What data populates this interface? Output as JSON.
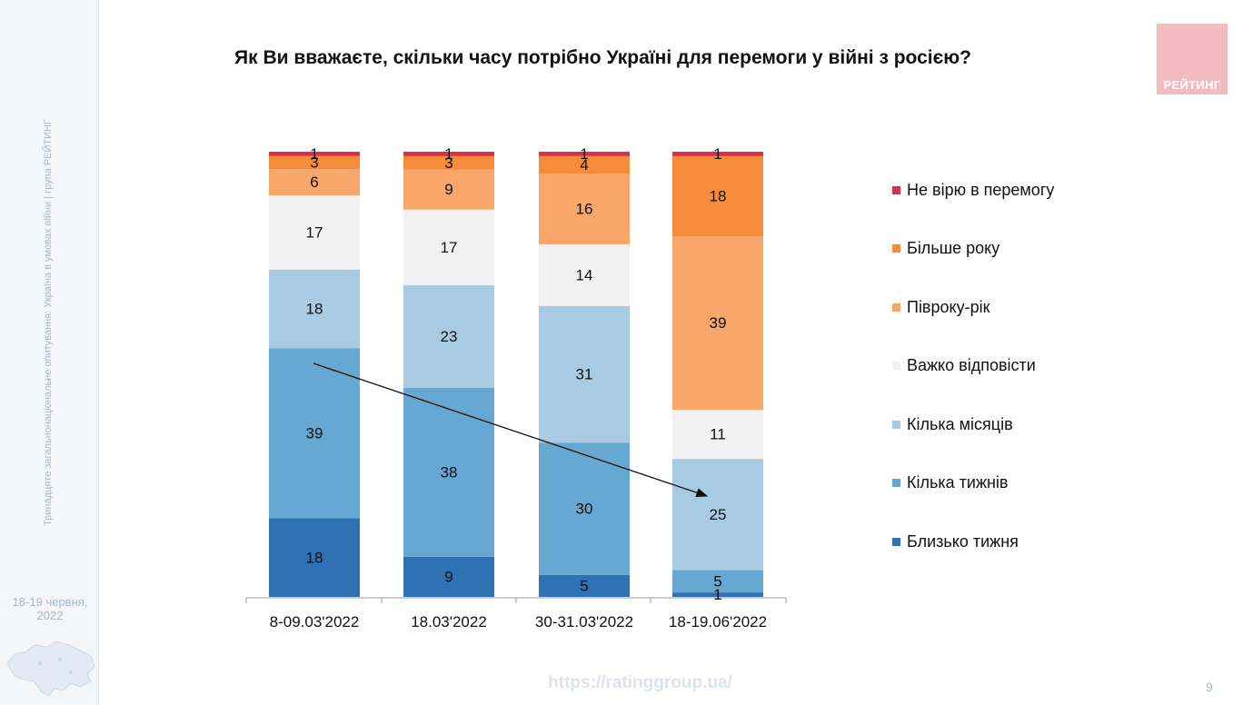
{
  "title": "Як Ви вважаєте, скільки часу потрібно Україні для перемоги у війні з росією?",
  "logo_text": "РЕЙТИНГ",
  "sidebar": {
    "vertical_caption": "Тринадцяте загальнонаціональне опитування: Україна в умовах війни | група РЕЙТИНГ",
    "date_line1": "18-19 червня,",
    "date_line2": "2022"
  },
  "footer": {
    "url": "https://ratinggroup.ua/",
    "page_number": "9"
  },
  "colors": {
    "not_believe": "#d6304f",
    "more_than_year": "#f68b3a",
    "half_year_year": "#f8a66a",
    "hard_to_answer": "#f2f2f2",
    "few_months": "#a7cbe3",
    "few_weeks": "#66a8d2",
    "about_week": "#2f72b3"
  },
  "chart_data": {
    "type": "bar",
    "stacked": true,
    "title": "Як Ви вважаєте, скільки часу потрібно Україні для перемоги у війні з росією?",
    "categories": [
      "8-09.03'2022",
      "18.03'2022",
      "30-31.03'2022",
      "18-19.06'2022"
    ],
    "series": [
      {
        "name": "Близько тижня",
        "color": "#2f72b3",
        "values": [
          18,
          9,
          5,
          1
        ]
      },
      {
        "name": "Кілька тижнів",
        "color": "#66a8d2",
        "values": [
          39,
          38,
          30,
          5
        ]
      },
      {
        "name": "Кілька місяців",
        "color": "#a7cbe3",
        "values": [
          18,
          23,
          31,
          25
        ]
      },
      {
        "name": "Важко відповісти",
        "color": "#f2f2f2",
        "values": [
          17,
          17,
          14,
          11
        ]
      },
      {
        "name": "Півроку-рік",
        "color": "#f8a66a",
        "values": [
          6,
          9,
          16,
          39
        ]
      },
      {
        "name": "Більше року",
        "color": "#f68b3a",
        "values": [
          3,
          3,
          4,
          18
        ]
      },
      {
        "name": "Не вірю в перемогу",
        "color": "#d6304f",
        "values": [
          1,
          1,
          1,
          1
        ]
      }
    ],
    "ylim": [
      0,
      100
    ],
    "legend_position": "right",
    "annotation": "arrow from first column (Кілька тижнів) to last column (Кілька місяців)"
  }
}
